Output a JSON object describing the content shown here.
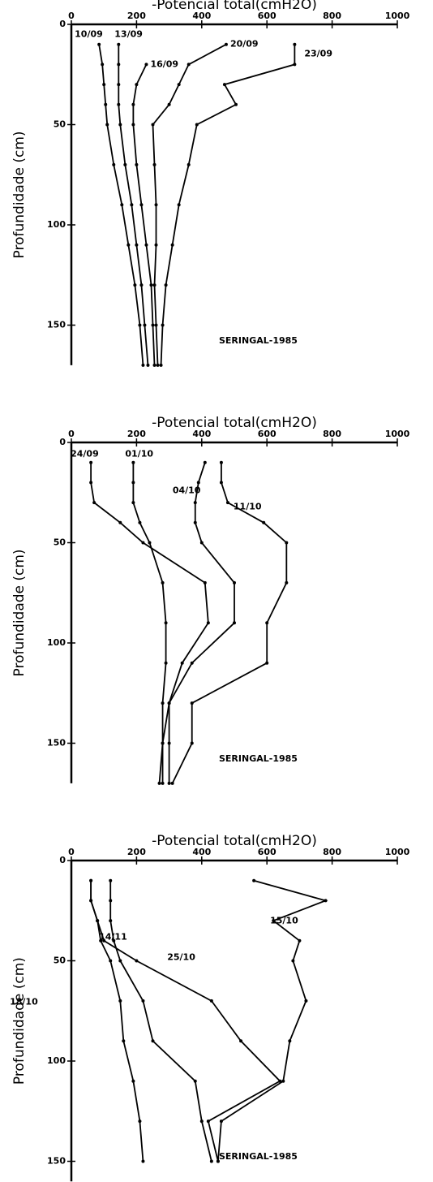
{
  "chart_data": [
    {
      "type": "line",
      "x_label": "-Potencial total(cmH2O)",
      "y_label": "Profundidade (cm)",
      "annotation": "SERINGAL-1985",
      "xlim": [
        0,
        1000
      ],
      "ylim": [
        0,
        170
      ],
      "xticks": [
        0,
        200,
        400,
        600,
        800,
        1000
      ],
      "yticks": [
        0,
        50,
        100,
        150
      ],
      "inverted_y": true,
      "series": [
        {
          "name": "10/09",
          "color": "#000000",
          "x": [
            85,
            95,
            100,
            105,
            110,
            130,
            155,
            175,
            195,
            210,
            220
          ],
          "y": [
            10,
            20,
            30,
            40,
            50,
            70,
            90,
            110,
            130,
            150,
            170
          ]
        },
        {
          "name": "13/09",
          "color": "#000000",
          "x": [
            145,
            145,
            145,
            145,
            150,
            165,
            185,
            200,
            215,
            225,
            235
          ],
          "y": [
            10,
            20,
            30,
            40,
            50,
            70,
            90,
            110,
            130,
            150,
            170
          ]
        },
        {
          "name": "16/09",
          "color": "#000000",
          "x": [
            230,
            200,
            190,
            190,
            200,
            215,
            230,
            245,
            250,
            255
          ],
          "y": [
            20,
            30,
            40,
            50,
            70,
            90,
            110,
            130,
            150,
            170
          ]
        },
        {
          "name": "20/09",
          "color": "#000000",
          "x": [
            475,
            360,
            330,
            300,
            250,
            255,
            260,
            260,
            255,
            260,
            265
          ],
          "y": [
            10,
            20,
            30,
            40,
            50,
            70,
            90,
            110,
            130,
            150,
            170
          ]
        },
        {
          "name": "23/09",
          "color": "#000000",
          "x": [
            685,
            685,
            470,
            505,
            385,
            360,
            330,
            310,
            290,
            280,
            275
          ],
          "y": [
            10,
            20,
            30,
            40,
            50,
            70,
            90,
            110,
            130,
            150,
            170
          ]
        }
      ]
    },
    {
      "type": "line",
      "x_label": "-Potencial total(cmH2O)",
      "y_label": "Profundidade (cm)",
      "annotation": "SERINGAL-1985",
      "xlim": [
        0,
        1000
      ],
      "ylim": [
        0,
        170
      ],
      "xticks": [
        0,
        200,
        400,
        600,
        800,
        1000
      ],
      "yticks": [
        0,
        50,
        100,
        150
      ],
      "inverted_y": true,
      "series": [
        {
          "name": "24/09",
          "color": "#000000",
          "x": [
            60,
            60,
            70,
            150,
            220,
            410,
            420,
            340,
            300,
            280,
            270
          ],
          "y": [
            10,
            20,
            30,
            40,
            50,
            70,
            90,
            110,
            130,
            150,
            170
          ]
        },
        {
          "name": "01/10",
          "color": "#000000",
          "x": [
            190,
            190,
            190,
            210,
            240,
            280,
            290,
            290,
            280,
            280,
            280
          ],
          "y": [
            10,
            20,
            30,
            40,
            50,
            70,
            90,
            110,
            130,
            150,
            170
          ]
        },
        {
          "name": "04/10",
          "color": "#000000",
          "x": [
            410,
            390,
            380,
            380,
            400,
            500,
            500,
            370,
            300,
            300,
            300
          ],
          "y": [
            10,
            20,
            30,
            40,
            50,
            70,
            90,
            110,
            130,
            150,
            170
          ]
        },
        {
          "name": "11/10",
          "color": "#000000",
          "x": [
            460,
            460,
            480,
            590,
            660,
            660,
            600,
            600,
            370,
            370,
            310
          ],
          "y": [
            10,
            20,
            30,
            40,
            50,
            70,
            90,
            110,
            130,
            150,
            170
          ]
        }
      ]
    },
    {
      "type": "line",
      "x_label": "-Potencial total(cmH2O)",
      "y_label": "Profundidade (cm)",
      "annotation": "SERINGAL-1985",
      "xlim": [
        0,
        1000
      ],
      "ylim": [
        0,
        160
      ],
      "xticks": [
        0,
        200,
        400,
        600,
        800,
        1000
      ],
      "yticks": [
        0,
        50,
        100,
        150
      ],
      "inverted_y": true,
      "series": [
        {
          "name": "15/10",
          "color": "#000000",
          "x": [
            560,
            780,
            620,
            700,
            680,
            720,
            670,
            650,
            460,
            450
          ],
          "y": [
            10,
            20,
            30,
            40,
            50,
            70,
            90,
            110,
            130,
            150
          ]
        },
        {
          "name": "18/10",
          "color": "#000000",
          "x": [
            60,
            60,
            80,
            100,
            200,
            430,
            520,
            640,
            420,
            450
          ],
          "y": [
            10,
            20,
            30,
            40,
            50,
            70,
            90,
            110,
            130,
            150
          ]
        },
        {
          "name": "25/10",
          "color": "#000000",
          "x": [
            120,
            120,
            120,
            130,
            150,
            220,
            250,
            380,
            400,
            430
          ],
          "y": [
            10,
            20,
            30,
            40,
            50,
            70,
            90,
            110,
            130,
            150
          ]
        },
        {
          "name": "14/11",
          "color": "#000000",
          "x": [
            60,
            60,
            80,
            90,
            120,
            150,
            160,
            190,
            210,
            220
          ],
          "y": [
            10,
            20,
            30,
            40,
            50,
            70,
            90,
            110,
            130,
            150
          ]
        }
      ]
    }
  ]
}
